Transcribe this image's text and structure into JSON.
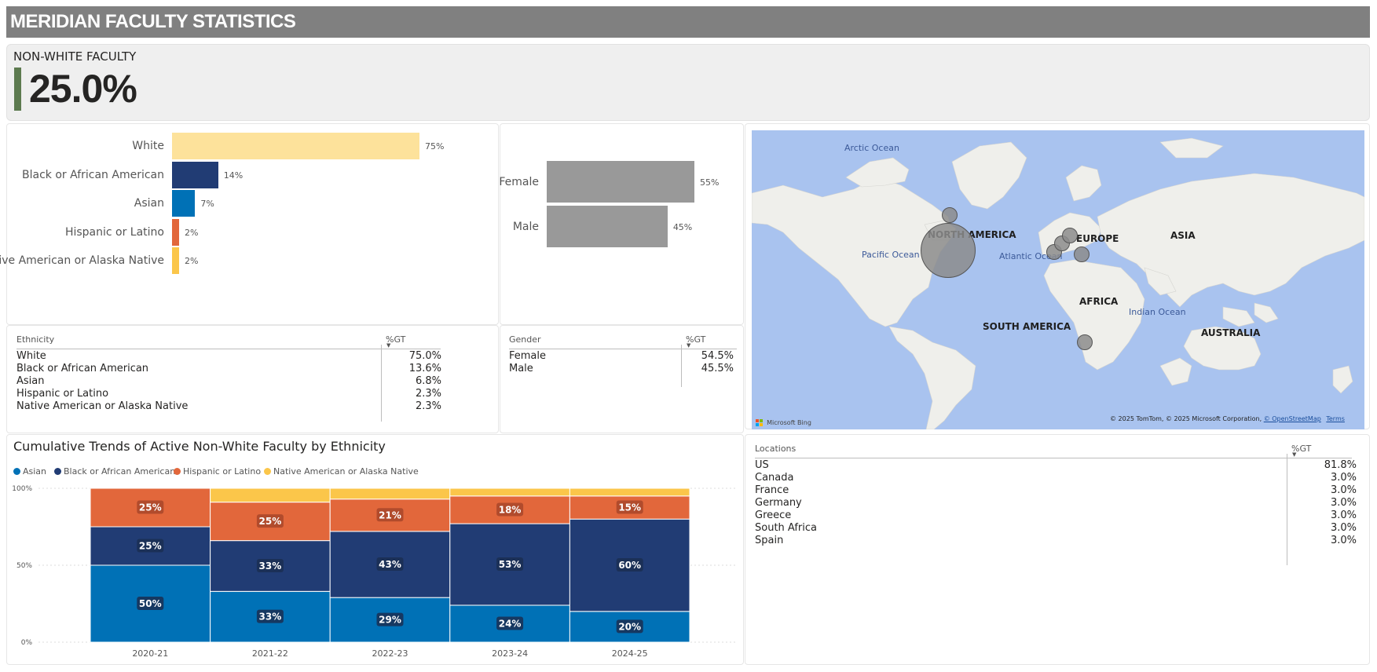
{
  "header": {
    "title": "MERIDIAN FACULTY STATISTICS"
  },
  "kpi": {
    "label": "NON-WHITE FACULTY",
    "value": "25.0%",
    "accent_color": "#5c7a4f"
  },
  "ethnicity_bars": {
    "items": [
      {
        "label": "White",
        "value_label": "75%",
        "value": 75,
        "color": "#fde29b"
      },
      {
        "label": "Black or African American",
        "value_label": "14%",
        "value": 14,
        "color": "#213c74"
      },
      {
        "label": "Asian",
        "value_label": "7%",
        "value": 7,
        "color": "#0071b6"
      },
      {
        "label": "Hispanic or Latino",
        "value_label": "2%",
        "value": 2,
        "color": "#e2673b"
      },
      {
        "label": "Native American or Alaska Native",
        "value_label": "2%",
        "value": 2,
        "color": "#fbc64a"
      }
    ]
  },
  "gender_bars": {
    "items": [
      {
        "label": "Female",
        "value_label": "55%",
        "value": 55,
        "color": "#999999"
      },
      {
        "label": "Male",
        "value_label": "45%",
        "value": 45,
        "color": "#999999"
      }
    ]
  },
  "ethnicity_table": {
    "col1": "Ethnicity",
    "col2": "%GT",
    "rows": [
      {
        "name": "White",
        "pct": "75.0%"
      },
      {
        "name": "Black or African American",
        "pct": "13.6%"
      },
      {
        "name": "Asian",
        "pct": "6.8%"
      },
      {
        "name": "Hispanic or Latino",
        "pct": "2.3%"
      },
      {
        "name": "Native American or Alaska Native",
        "pct": "2.3%"
      }
    ]
  },
  "gender_table": {
    "col1": "Gender",
    "col2": "%GT",
    "rows": [
      {
        "name": "Female",
        "pct": "54.5%"
      },
      {
        "name": "Male",
        "pct": "45.5%"
      }
    ]
  },
  "locations_table": {
    "col1": "Locations",
    "col2": "%GT",
    "rows": [
      {
        "name": "US",
        "pct": "81.8%"
      },
      {
        "name": "Canada",
        "pct": "3.0%"
      },
      {
        "name": "France",
        "pct": "3.0%"
      },
      {
        "name": "Germany",
        "pct": "3.0%"
      },
      {
        "name": "Greece",
        "pct": "3.0%"
      },
      {
        "name": "South Africa",
        "pct": "3.0%"
      },
      {
        "name": "Spain",
        "pct": "3.0%"
      }
    ]
  },
  "map": {
    "continents": [
      "NORTH AMERICA",
      "EUROPE",
      "ASIA",
      "AFRICA",
      "SOUTH AMERICA",
      "AUSTRALIA"
    ],
    "oceans": [
      "Arctic Ocean",
      "Pacific Ocean",
      "Atlantic Ocean",
      "Indian Ocean"
    ],
    "brand": "Microsoft Bing",
    "attribution": "© 2025 TomTom, © 2025 Microsoft Corporation,",
    "osm_link": "© OpenStreetMap",
    "terms_link": "Terms"
  },
  "chart_data": {
    "type": "bar",
    "stacked": "100%",
    "title": "Cumulative Trends of Active Non-White Faculty by Ethnicity",
    "categories": [
      "2020-21",
      "2021-22",
      "2022-23",
      "2023-24",
      "2024-25"
    ],
    "y_ticks": [
      "0%",
      "50%",
      "100%"
    ],
    "ylim": [
      0,
      100
    ],
    "legend_position": "top-left",
    "series": [
      {
        "name": "Asian",
        "color": "#0071b6",
        "values": [
          50,
          33,
          29,
          24,
          20
        ],
        "labels": [
          "50%",
          "33%",
          "29%",
          "24%",
          "20%"
        ]
      },
      {
        "name": "Black or African American",
        "color": "#213c74",
        "values": [
          25,
          33,
          43,
          53,
          60
        ],
        "labels": [
          "25%",
          "33%",
          "43%",
          "53%",
          "60%"
        ]
      },
      {
        "name": "Hispanic or Latino",
        "color": "#e2673b",
        "values": [
          25,
          25,
          21,
          18,
          15
        ],
        "labels": [
          "25%",
          "25%",
          "21%",
          "18%",
          "15%"
        ]
      },
      {
        "name": "Native American or Alaska Native",
        "color": "#fbc64a",
        "values": [
          0,
          9,
          7,
          5,
          5
        ],
        "labels": [
          "",
          "",
          "",
          "",
          ""
        ]
      }
    ]
  }
}
